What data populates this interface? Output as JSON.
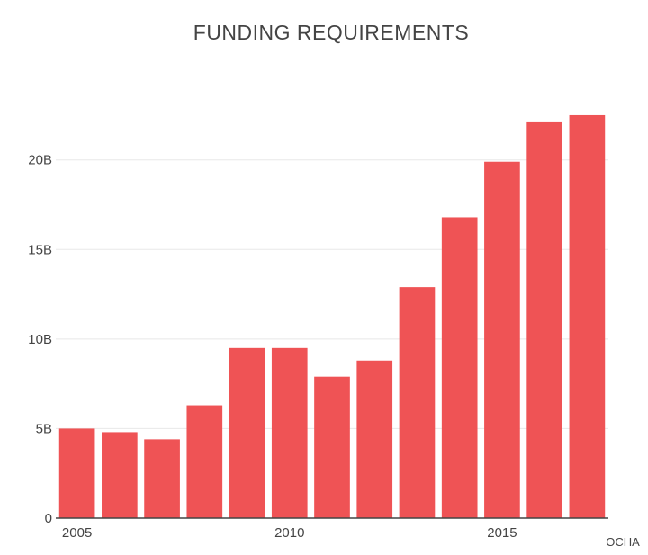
{
  "chart_data": {
    "type": "bar",
    "title": "FUNDING REQUIREMENTS",
    "xlabel": "",
    "ylabel": "",
    "x": [
      2005,
      2006,
      2007,
      2008,
      2009,
      2010,
      2011,
      2012,
      2013,
      2014,
      2015,
      2016,
      2017
    ],
    "values": [
      5.0,
      4.8,
      4.4,
      6.3,
      9.5,
      9.5,
      7.9,
      8.8,
      12.9,
      16.8,
      19.9,
      22.1,
      22.5
    ],
    "unit": "B",
    "ylim": [
      0,
      23
    ],
    "yticks": [
      {
        "value": 0,
        "label": "0"
      },
      {
        "value": 5,
        "label": "5B"
      },
      {
        "value": 10,
        "label": "10B"
      },
      {
        "value": 15,
        "label": "15B"
      },
      {
        "value": 20,
        "label": "20B"
      }
    ],
    "xticks": [
      {
        "value": 2005,
        "label": "2005"
      },
      {
        "value": 2010,
        "label": "2010"
      },
      {
        "value": 2015,
        "label": "2015"
      }
    ],
    "grid": true,
    "legend": "none",
    "source": "OCHA",
    "color": "#ef5355"
  }
}
